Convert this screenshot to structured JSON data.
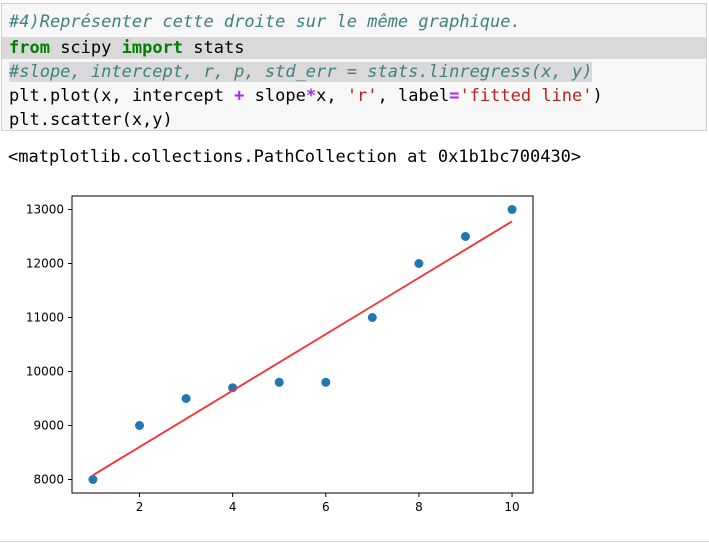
{
  "code_cell": {
    "lines": [
      [
        {
          "t": "#4)Représenter cette droite sur le même graphique.",
          "c": "cm"
        }
      ],
      [
        {
          "t": "from",
          "c": "kw"
        },
        {
          "t": " scipy ",
          "c": ""
        },
        {
          "t": "import",
          "c": "kw"
        },
        {
          "t": " stats",
          "c": ""
        }
      ],
      [
        {
          "t": "#slope, intercept, r, p, std_err = stats.linregress(x, y)",
          "c": "cm sel"
        }
      ],
      [
        {
          "t": "plt.plot(x, intercept ",
          "c": ""
        },
        {
          "t": "+",
          "c": "op"
        },
        {
          "t": " slope",
          "c": ""
        },
        {
          "t": "*",
          "c": "op"
        },
        {
          "t": "x, ",
          "c": ""
        },
        {
          "t": "'r'",
          "c": "st"
        },
        {
          "t": ", label",
          "c": ""
        },
        {
          "t": "=",
          "c": "op"
        },
        {
          "t": "'fitted line'",
          "c": "st"
        },
        {
          "t": ")",
          "c": ""
        }
      ],
      [
        {
          "t": "plt.scatter(x,y)",
          "c": ""
        }
      ]
    ]
  },
  "output": {
    "text": "<matplotlib.collections.PathCollection at 0x1b1bc700430>"
  },
  "chart_data": {
    "type": "scatter",
    "x": [
      1,
      2,
      3,
      4,
      5,
      6,
      7,
      8,
      9,
      10
    ],
    "y": [
      8000,
      9000,
      9500,
      9700,
      9800,
      9800,
      11000,
      12000,
      12500,
      13000
    ],
    "fit_line": {
      "x": [
        1,
        10
      ],
      "y": [
        8080,
        12780
      ],
      "color": "#ff2a2a"
    },
    "point_color": "#1f77b4",
    "xlim": [
      0.55,
      10.45
    ],
    "ylim": [
      7750,
      13250
    ],
    "xticks": [
      2,
      4,
      6,
      8,
      10
    ],
    "yticks": [
      8000,
      9000,
      10000,
      11000,
      12000,
      13000
    ],
    "grid": false,
    "title": "",
    "xlabel": "",
    "ylabel": ""
  }
}
